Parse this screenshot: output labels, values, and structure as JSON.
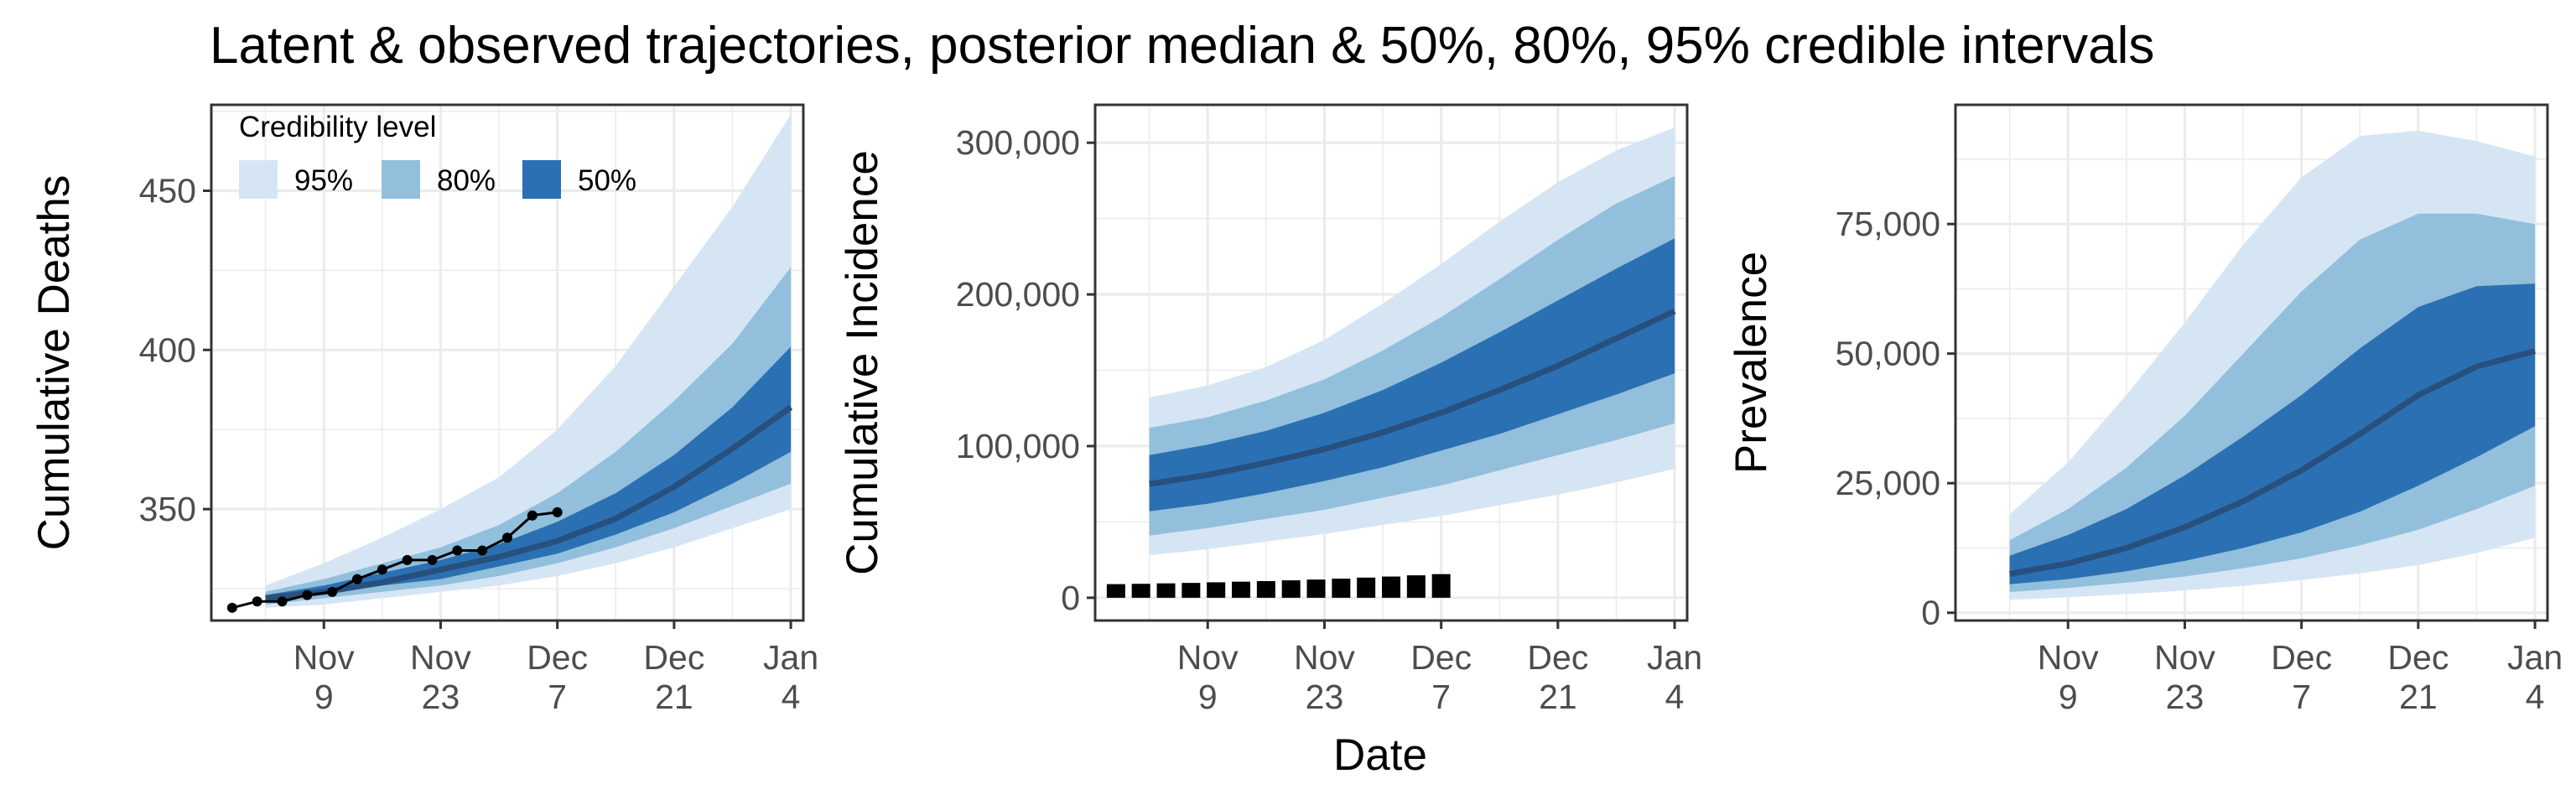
{
  "title": "Latent & observed trajectories, posterior median & 50%, 80%, 95% credible intervals",
  "shared_xlabel": "Date",
  "colors": {
    "band_95": "#d6e5f4",
    "band_80": "#92bfdc",
    "band_50": "#2b70b2",
    "median": "#27507f",
    "observed": "#000000",
    "grid": "#ebebeb",
    "panel_border": "#333333"
  },
  "legend": {
    "title": "Credibility level",
    "items": [
      {
        "label": "95%",
        "color": "#d6e5f4"
      },
      {
        "label": "80%",
        "color": "#92bfdc"
      },
      {
        "label": "50%",
        "color": "#2b70b2"
      }
    ]
  },
  "chart_data": [
    {
      "type": "area",
      "ylabel": "Cumulative Deaths",
      "x_day_range": [
        -6.5,
        64.5
      ],
      "ylim": [
        315,
        477
      ],
      "yticks": [
        350,
        400,
        450
      ],
      "ytick_labels": [
        "350",
        "400",
        "450"
      ],
      "xticks": [
        {
          "day": 7,
          "line1": "Nov",
          "line2": "9"
        },
        {
          "day": 21,
          "line1": "Nov",
          "line2": "23"
        },
        {
          "day": 35,
          "line1": "Dec",
          "line2": "7"
        },
        {
          "day": 49,
          "line1": "Dec",
          "line2": "21"
        },
        {
          "day": 63,
          "line1": "Jan",
          "line2": "4"
        }
      ],
      "bands": {
        "day": [
          0,
          7,
          14,
          21,
          28,
          35,
          42,
          49,
          56,
          63
        ],
        "lo95": [
          319,
          320,
          322,
          324,
          326,
          329,
          333,
          338,
          344,
          350
        ],
        "hi95": [
          326,
          333,
          341,
          350,
          360,
          375,
          395,
          420,
          445,
          474
        ],
        "lo80": [
          320,
          322,
          324,
          326,
          329,
          333,
          338,
          344,
          351,
          358
        ],
        "hi80": [
          324,
          328,
          333,
          338,
          345,
          355,
          368,
          384,
          402,
          426
        ],
        "lo50": [
          321,
          323,
          326,
          328,
          332,
          336,
          342,
          349,
          358,
          368
        ],
        "hi50": [
          323,
          326,
          330,
          334,
          339,
          346,
          355,
          367,
          382,
          401
        ],
        "median": [
          322,
          324,
          327,
          331,
          335,
          340,
          347,
          357,
          369,
          382
        ]
      },
      "observed": {
        "style": "line-points",
        "day": [
          -4,
          -1,
          2,
          5,
          8,
          11,
          14,
          17,
          20,
          23,
          26,
          29,
          32,
          35
        ],
        "value": [
          319,
          321,
          321,
          323,
          324,
          328,
          331,
          334,
          334,
          337,
          337,
          341,
          348,
          349
        ]
      }
    },
    {
      "type": "area",
      "ylabel": "Cumulative Incidence",
      "xlabel": "Date",
      "x_day_range": [
        -6.5,
        64.5
      ],
      "ylim": [
        -15000,
        325000
      ],
      "yticks": [
        0,
        100000,
        200000,
        300000
      ],
      "ytick_labels": [
        "0",
        "100,000",
        "200,000",
        "300,000"
      ],
      "xticks": [
        {
          "day": 7,
          "line1": "Nov",
          "line2": "9"
        },
        {
          "day": 21,
          "line1": "Nov",
          "line2": "23"
        },
        {
          "day": 35,
          "line1": "Dec",
          "line2": "7"
        },
        {
          "day": 49,
          "line1": "Dec",
          "line2": "21"
        },
        {
          "day": 63,
          "line1": "Jan",
          "line2": "4"
        }
      ],
      "bands": {
        "day": [
          0,
          7,
          14,
          21,
          28,
          35,
          42,
          49,
          56,
          63
        ],
        "lo95": [
          28000,
          32000,
          37000,
          42000,
          48000,
          54000,
          61000,
          68000,
          76000,
          85000
        ],
        "hi95": [
          132000,
          140000,
          152000,
          170000,
          194000,
          220000,
          248000,
          274000,
          295000,
          310000
        ],
        "lo80": [
          41000,
          46000,
          52000,
          58000,
          66000,
          74000,
          84000,
          94000,
          104000,
          115000
        ],
        "hi80": [
          112000,
          119000,
          130000,
          144000,
          163000,
          185000,
          210000,
          236000,
          260000,
          278000
        ],
        "lo50": [
          57000,
          62000,
          69000,
          77000,
          86000,
          97000,
          108000,
          121000,
          134000,
          148000
        ],
        "hi50": [
          94000,
          101000,
          110000,
          122000,
          137000,
          155000,
          175000,
          196000,
          217000,
          237000
        ],
        "median": [
          75000,
          81000,
          89000,
          98000,
          109000,
          122000,
          137000,
          153000,
          171000,
          189000
        ]
      },
      "observed": {
        "style": "squares",
        "day": [
          -4,
          -1,
          2,
          5,
          8,
          11,
          14,
          17,
          20,
          23,
          26,
          29,
          32,
          35
        ],
        "value": [
          9000,
          9200,
          9500,
          9800,
          10200,
          10600,
          11000,
          11500,
          12000,
          12600,
          13300,
          14000,
          14800,
          15600
        ]
      }
    },
    {
      "type": "area",
      "ylabel": "Prevalence",
      "x_day_range": [
        -6.5,
        64.5
      ],
      "ylim": [
        -1500,
        98000
      ],
      "yticks": [
        0,
        25000,
        50000,
        75000
      ],
      "ytick_labels": [
        "0",
        "25,000",
        "50,000",
        "75,000"
      ],
      "xticks": [
        {
          "day": 7,
          "line1": "Nov",
          "line2": "9"
        },
        {
          "day": 21,
          "line1": "Nov",
          "line2": "23"
        },
        {
          "day": 35,
          "line1": "Dec",
          "line2": "7"
        },
        {
          "day": 49,
          "line1": "Dec",
          "line2": "21"
        },
        {
          "day": 63,
          "line1": "Jan",
          "line2": "4"
        }
      ],
      "bands": {
        "day": [
          0,
          7,
          14,
          21,
          28,
          35,
          42,
          49,
          56,
          63
        ],
        "lo95": [
          2500,
          3000,
          3600,
          4300,
          5200,
          6300,
          7600,
          9200,
          11500,
          14500
        ],
        "hi95": [
          19000,
          29000,
          42000,
          56000,
          71000,
          84000,
          92000,
          93000,
          91000,
          88000
        ],
        "lo80": [
          4000,
          4800,
          5800,
          7000,
          8600,
          10500,
          13000,
          16000,
          20000,
          24500
        ],
        "hi80": [
          14000,
          20000,
          28000,
          38000,
          50000,
          62000,
          72000,
          77000,
          77000,
          75000
        ],
        "lo50": [
          5500,
          6500,
          8000,
          10000,
          12500,
          15500,
          19500,
          24500,
          30000,
          36000
        ],
        "hi50": [
          11000,
          15000,
          20000,
          26500,
          34000,
          42000,
          51000,
          59000,
          63000,
          63500
        ],
        "median": [
          7500,
          9500,
          12500,
          16500,
          21500,
          27500,
          34500,
          42000,
          47500,
          50500
        ]
      },
      "observed": null
    }
  ]
}
